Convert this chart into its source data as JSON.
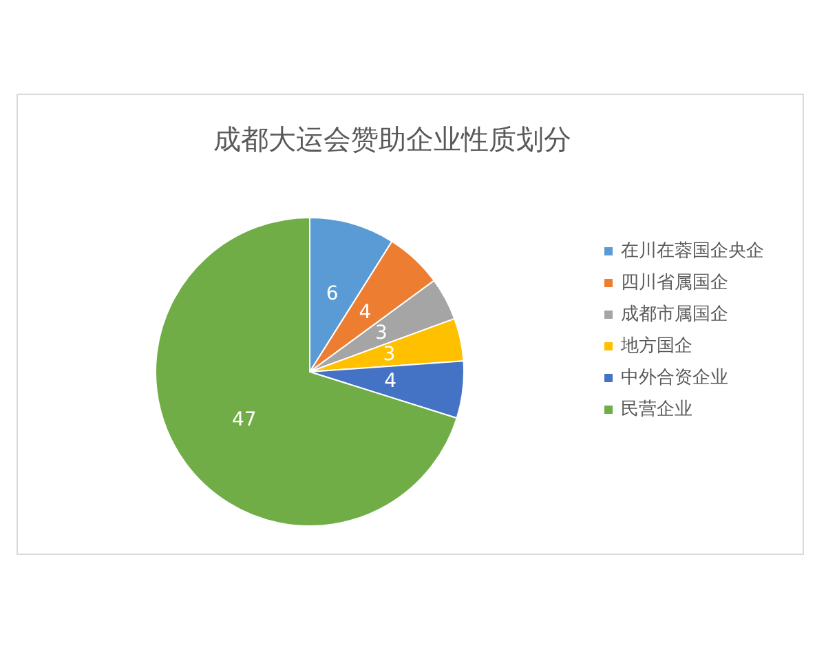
{
  "chart_data": {
    "type": "pie",
    "title": "成都大运会赞助企业性质划分",
    "categories": [
      "在川在蓉国企央企",
      "四川省属国企",
      "成都市属国企",
      "地方国企",
      "中外合资企业",
      "民营企业"
    ],
    "values": [
      6,
      4,
      3,
      3,
      4,
      47
    ],
    "colors": [
      "#5b9bd5",
      "#ed7d31",
      "#a5a5a5",
      "#ffc000",
      "#4472c4",
      "#70ad47"
    ],
    "data_labels": true,
    "legend": "right"
  }
}
